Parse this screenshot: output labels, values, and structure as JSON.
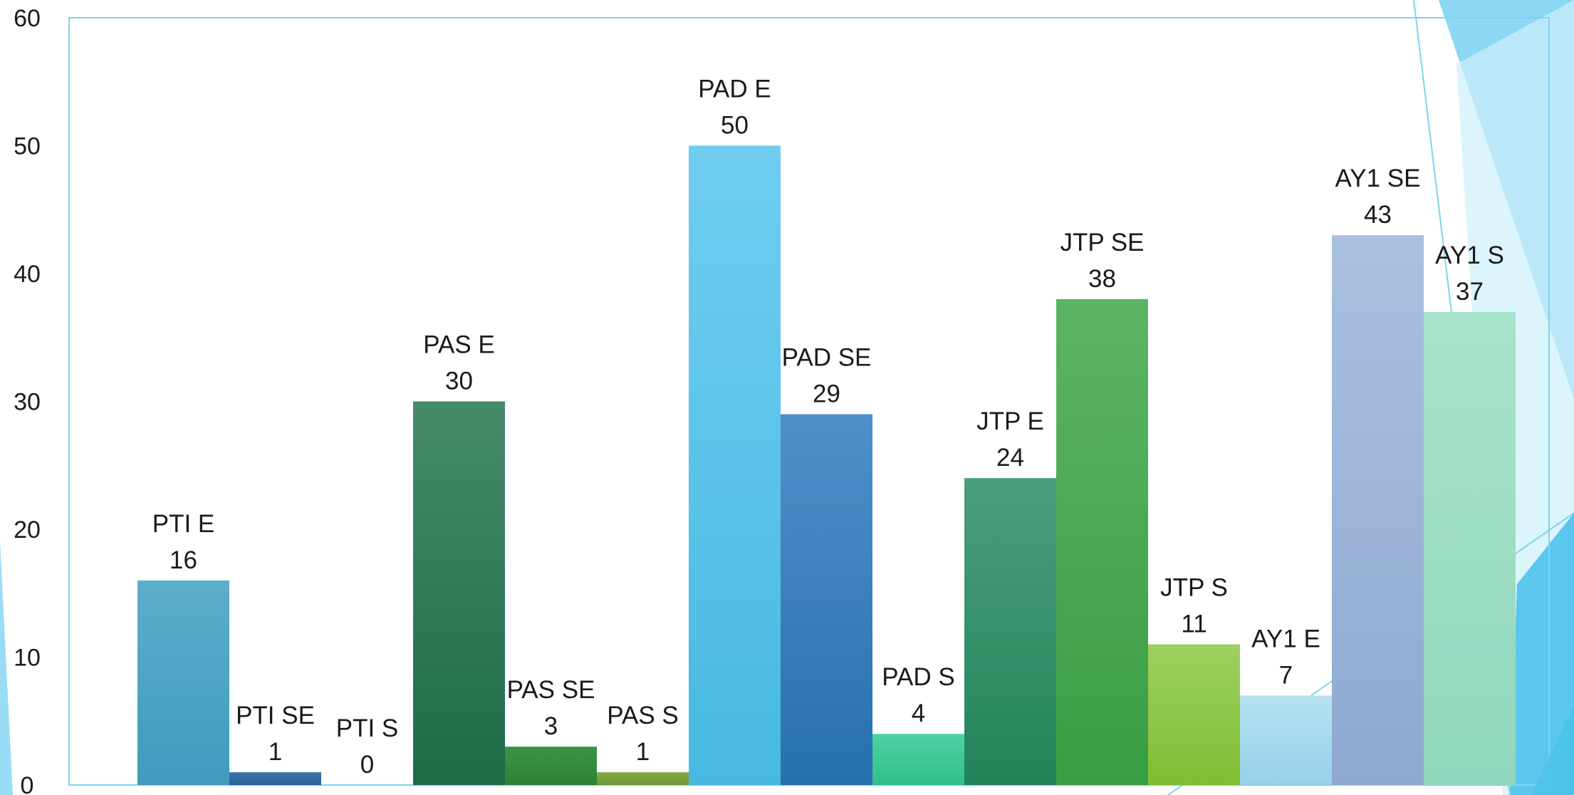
{
  "chart_data": {
    "type": "bar",
    "title": "",
    "xlabel": "",
    "ylabel": "",
    "ylim": [
      0,
      60
    ],
    "yticks": [
      0,
      10,
      20,
      30,
      40,
      50,
      60
    ],
    "grid": false,
    "legend": "none",
    "bars": [
      {
        "label": "PTI E",
        "value": 16,
        "color_top": "#5caecb",
        "color_bottom": "#3f9bbd"
      },
      {
        "label": "PTI SE",
        "value": 1,
        "color_top": "#3a74ad",
        "color_bottom": "#2b5f98"
      },
      {
        "label": "PTI S",
        "value": 0,
        "color_top": "#3a7d5a",
        "color_bottom": "#2e6a4a"
      },
      {
        "label": "PAS E",
        "value": 30,
        "color_top": "#468a6a",
        "color_bottom": "#1e6b47"
      },
      {
        "label": "PAS SE",
        "value": 3,
        "color_top": "#3a9444",
        "color_bottom": "#2d8137"
      },
      {
        "label": "PAS S",
        "value": 1,
        "color_top": "#86a94a",
        "color_bottom": "#6f9634"
      },
      {
        "label": "PAD E",
        "value": 50,
        "color_top": "#6fcdf0",
        "color_bottom": "#47b9e3"
      },
      {
        "label": "PAD SE",
        "value": 29,
        "color_top": "#4f8fcb",
        "color_bottom": "#2670ae"
      },
      {
        "label": "PAD S",
        "value": 4,
        "color_top": "#4fd1a3",
        "color_bottom": "#2fc08b"
      },
      {
        "label": "JTP E",
        "value": 24,
        "color_top": "#4a9e7c",
        "color_bottom": "#22835a"
      },
      {
        "label": "JTP SE",
        "value": 38,
        "color_top": "#5cb564",
        "color_bottom": "#399d43"
      },
      {
        "label": "JTP S",
        "value": 11,
        "color_top": "#9dd060",
        "color_bottom": "#7fbe33"
      },
      {
        "label": "AY1 E",
        "value": 7,
        "color_top": "#b6e2f3",
        "color_bottom": "#95d0ea"
      },
      {
        "label": "AY1 SE",
        "value": 43,
        "color_top": "#a9c0e0",
        "color_bottom": "#8ea8d0"
      },
      {
        "label": "AY1 S",
        "value": 37,
        "color_top": "#a8e3cb",
        "color_bottom": "#92d7bd"
      }
    ]
  },
  "colors": {
    "plot_border": "#7fd3f2",
    "accent_dark": "#4cc2ec",
    "accent_mid": "#7fd3f2",
    "accent_light": "#cdeffb"
  }
}
